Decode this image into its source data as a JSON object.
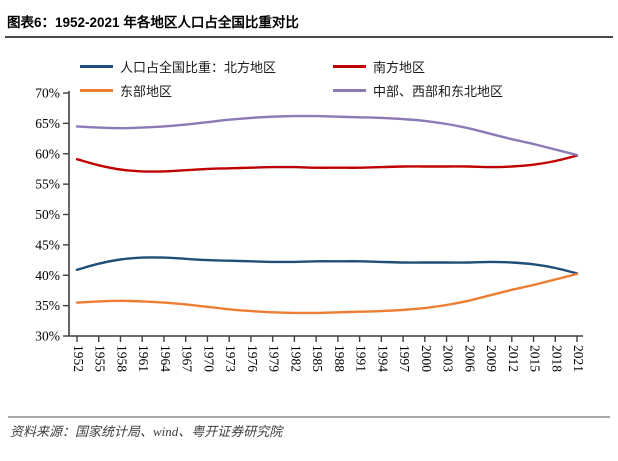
{
  "title": "图表6：1952-2021 年各地区人口占全国比重对比",
  "source": "资料来源：国家统计局、wind、粤开证券研究院",
  "chart_data": {
    "type": "line",
    "title": "1952-2021 年各地区人口占全国比重对比",
    "xlabel": "",
    "ylabel": "",
    "ylim": [
      30,
      70
    ],
    "grid": false,
    "legend_position": "top",
    "y_ticks": [
      "70%",
      "65%",
      "60%",
      "55%",
      "50%",
      "45%",
      "40%",
      "35%",
      "30%"
    ],
    "x": [
      "1952",
      "1955",
      "1958",
      "1961",
      "1964",
      "1967",
      "1970",
      "1973",
      "1976",
      "1979",
      "1982",
      "1985",
      "1988",
      "1991",
      "1994",
      "1997",
      "2000",
      "2003",
      "2006",
      "2009",
      "2012",
      "2015",
      "2018",
      "2021"
    ],
    "series": [
      {
        "name": "人口占全国比重：北方地区",
        "color": "#1F4E79",
        "values": [
          40.9,
          41.9,
          42.6,
          42.9,
          42.9,
          42.7,
          42.5,
          42.4,
          42.3,
          42.2,
          42.2,
          42.3,
          42.3,
          42.3,
          42.2,
          42.1,
          42.1,
          42.1,
          42.1,
          42.2,
          42.1,
          41.8,
          41.2,
          40.3
        ]
      },
      {
        "name": "南方地区",
        "color": "#C00000",
        "values": [
          59.1,
          58.1,
          57.4,
          57.1,
          57.1,
          57.3,
          57.5,
          57.6,
          57.7,
          57.8,
          57.8,
          57.7,
          57.7,
          57.7,
          57.8,
          57.9,
          57.9,
          57.9,
          57.9,
          57.8,
          57.9,
          58.2,
          58.8,
          59.7
        ]
      },
      {
        "name": "东部地区",
        "color": "#ED7D31",
        "values": [
          35.5,
          35.7,
          35.8,
          35.7,
          35.5,
          35.2,
          34.8,
          34.4,
          34.1,
          33.9,
          33.8,
          33.8,
          33.9,
          34.0,
          34.1,
          34.3,
          34.6,
          35.1,
          35.8,
          36.7,
          37.6,
          38.4,
          39.3,
          40.2
        ]
      },
      {
        "name": "中部、西部和东北地区",
        "color": "#8C7AB5",
        "values": [
          64.5,
          64.3,
          64.2,
          64.3,
          64.5,
          64.8,
          65.2,
          65.6,
          65.9,
          66.1,
          66.2,
          66.2,
          66.1,
          66.0,
          65.9,
          65.7,
          65.4,
          64.9,
          64.2,
          63.3,
          62.4,
          61.6,
          60.7,
          59.8
        ]
      }
    ]
  }
}
